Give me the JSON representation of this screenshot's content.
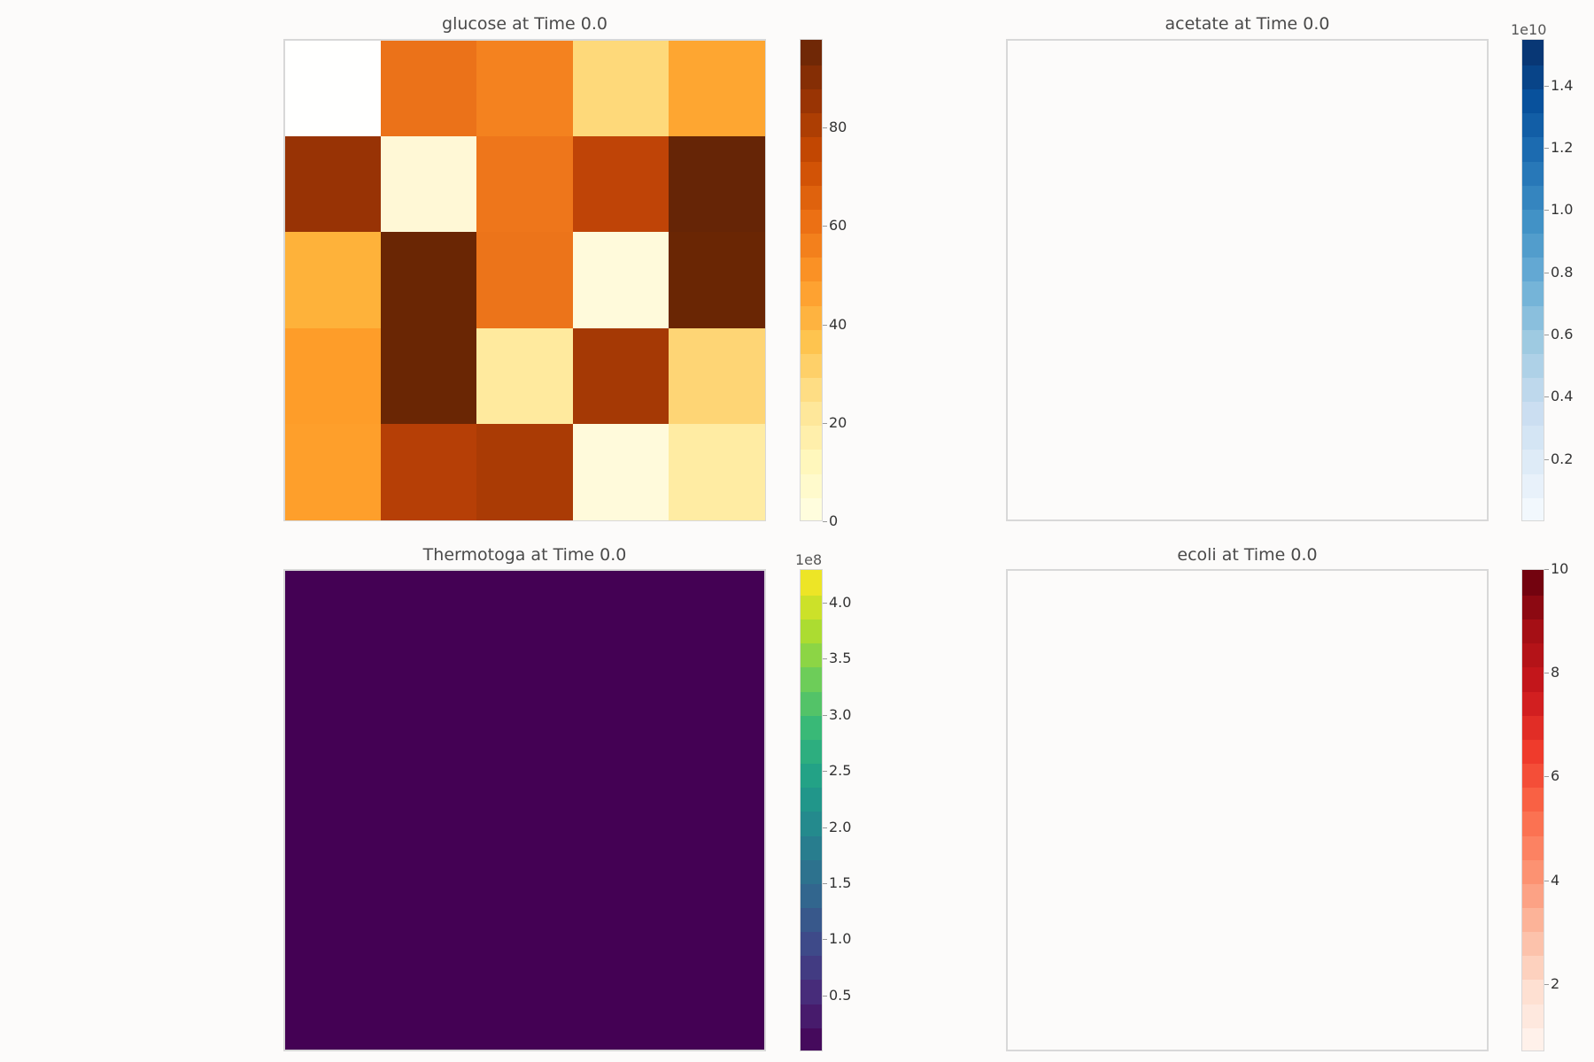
{
  "chart_data": [
    {
      "type": "heatmap",
      "title": "glucose at Time 0.0",
      "cmap": "YlOrBr",
      "clim": [
        0,
        98
      ],
      "colorbar_ticks": [
        "0",
        "20",
        "40",
        "60",
        "80"
      ],
      "colorbar_tick_values": [
        0,
        20,
        40,
        60,
        80
      ],
      "colorbar_multiplier": "",
      "grid": [
        [
          0,
          68,
          63,
          28,
          49
        ],
        [
          90,
          10,
          66,
          80,
          98
        ],
        [
          43,
          97,
          67,
          8,
          97
        ],
        [
          53,
          97,
          21,
          86,
          30
        ],
        [
          52,
          82,
          85,
          7,
          18
        ]
      ],
      "colors": {
        "0": "#fffffe",
        "7": "#fffadb",
        "8": "#fffadb",
        "10": "#fff8d6",
        "18": "#ffeca3",
        "21": "#ffea9e",
        "28": "#fed97a",
        "30": "#fed575",
        "43": "#feb23a",
        "49": "#fea631",
        "52": "#fe9f2b",
        "53": "#fe9d29",
        "63": "#f4821f",
        "66": "#ee761b",
        "67": "#ec741a",
        "68": "#eb7219",
        "80": "#bf4407",
        "82": "#b63f06",
        "85": "#aa3b05",
        "86": "#a53905",
        "90": "#983305",
        "97": "#6a2604",
        "98": "#662506"
      }
    },
    {
      "type": "heatmap",
      "title": "acetate at Time 0.0",
      "cmap": "Blues",
      "clim": [
        0,
        1.55
      ],
      "colorbar_ticks": [
        "0.2",
        "0.4",
        "0.6",
        "0.8",
        "1.0",
        "1.2",
        "1.4"
      ],
      "colorbar_tick_values": [
        0.2,
        0.4,
        0.6,
        0.8,
        1.0,
        1.2,
        1.4
      ],
      "colorbar_multiplier": "1e10",
      "grid": []
    },
    {
      "type": "heatmap",
      "title": "Thermotoga at Time 0.0",
      "cmap": "viridis",
      "clim": [
        0,
        4.3
      ],
      "colorbar_ticks": [
        "0.5",
        "1.0",
        "1.5",
        "2.0",
        "2.5",
        "3.0",
        "3.5",
        "4.0"
      ],
      "colorbar_tick_values": [
        0.5,
        1.0,
        1.5,
        2.0,
        2.5,
        3.0,
        3.5,
        4.0
      ],
      "colorbar_multiplier": "1e8",
      "fill_color": "#440154",
      "grid": []
    },
    {
      "type": "heatmap",
      "title": "ecoli at Time 0.0",
      "cmap": "Reds",
      "clim": [
        0.7,
        10
      ],
      "colorbar_ticks": [
        "2",
        "4",
        "6",
        "8",
        "10"
      ],
      "colorbar_tick_values": [
        2,
        4,
        6,
        8,
        10
      ],
      "colorbar_multiplier": "",
      "grid": []
    }
  ]
}
